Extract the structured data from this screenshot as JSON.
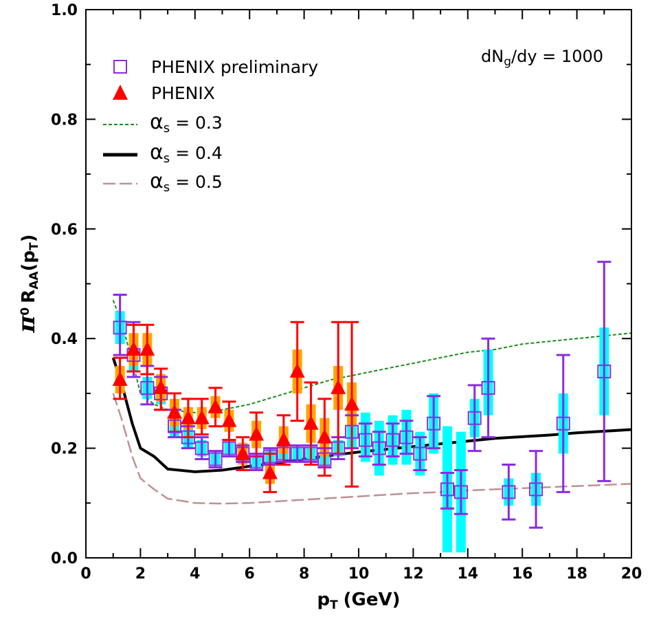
{
  "chart_data": {
    "type": "scatter",
    "x_label": "p",
    "x_label_sub": "T",
    "x_label_unit": "(GeV)",
    "y_label_symbol": "π",
    "y_label_sup": "0",
    "y_label_main": "R",
    "y_label_sub": "AA",
    "y_label_arg_open": "(p",
    "y_label_arg_sub": "T",
    "y_label_arg_close": ")",
    "xlim": [
      0,
      20
    ],
    "ylim": [
      0.0,
      1.0
    ],
    "x_ticks": [
      "0",
      "2",
      "4",
      "6",
      "8",
      "10",
      "12",
      "14",
      "16",
      "18",
      "20"
    ],
    "y_ticks": [
      "0.0",
      "0.2",
      "0.4",
      "0.6",
      "0.8",
      "1.0"
    ],
    "annotation": {
      "main": "dN",
      "sub": "g",
      "rest": "/dy = 1000"
    },
    "legend": [
      {
        "label": "PHENIX preliminary",
        "marker": "open-square",
        "color": "#8a2be2"
      },
      {
        "label": "PHENIX",
        "marker": "filled-triangle",
        "color": "#ff0000"
      },
      {
        "label_symbol": "α",
        "label_sub": "s",
        "label_rest": " = 0.3",
        "line": "short-dash",
        "color": "#1a8a1a"
      },
      {
        "label_symbol": "α",
        "label_sub": "s",
        "label_rest": " = 0.4",
        "line": "solid",
        "color": "#000000"
      },
      {
        "label_symbol": "α",
        "label_sub": "s",
        "label_rest": " = 0.5",
        "line": "long-dash",
        "color": "#c09090"
      }
    ],
    "colors": {
      "preliminary_marker": "#8a2be2",
      "preliminary_syst": "#00ffff",
      "phenix_marker": "#ff0000",
      "phenix_syst": "#ffa500",
      "curve_03": "#1a8a1a",
      "curve_04": "#000000",
      "curve_05": "#c09090"
    },
    "series": [
      {
        "name": "PHENIX preliminary",
        "points": [
          {
            "x": 1.25,
            "y": 0.42,
            "lo": 0.37,
            "hi": 0.48,
            "slo": 0.39,
            "shi": 0.45
          },
          {
            "x": 1.75,
            "y": 0.37,
            "lo": 0.33,
            "hi": 0.43,
            "slo": 0.34,
            "shi": 0.4
          },
          {
            "x": 2.25,
            "y": 0.31,
            "lo": 0.28,
            "hi": 0.35,
            "slo": 0.29,
            "shi": 0.33
          },
          {
            "x": 2.75,
            "y": 0.3,
            "lo": 0.27,
            "hi": 0.33,
            "slo": 0.28,
            "shi": 0.32
          },
          {
            "x": 3.25,
            "y": 0.24,
            "lo": 0.22,
            "hi": 0.27,
            "slo": 0.22,
            "shi": 0.26
          },
          {
            "x": 3.75,
            "y": 0.22,
            "lo": 0.2,
            "hi": 0.24,
            "slo": 0.2,
            "shi": 0.24
          },
          {
            "x": 4.25,
            "y": 0.2,
            "lo": 0.18,
            "hi": 0.22,
            "slo": 0.185,
            "shi": 0.215
          },
          {
            "x": 4.75,
            "y": 0.18,
            "lo": 0.165,
            "hi": 0.195,
            "slo": 0.17,
            "shi": 0.19
          },
          {
            "x": 5.25,
            "y": 0.2,
            "lo": 0.185,
            "hi": 0.215,
            "slo": 0.19,
            "shi": 0.21
          },
          {
            "x": 5.75,
            "y": 0.19,
            "lo": 0.175,
            "hi": 0.205,
            "slo": 0.18,
            "shi": 0.2
          },
          {
            "x": 6.25,
            "y": 0.175,
            "lo": 0.16,
            "hi": 0.19,
            "slo": 0.165,
            "shi": 0.185
          },
          {
            "x": 6.75,
            "y": 0.185,
            "lo": 0.17,
            "hi": 0.2,
            "slo": 0.175,
            "shi": 0.195
          },
          {
            "x": 7.25,
            "y": 0.19,
            "lo": 0.175,
            "hi": 0.205,
            "slo": 0.18,
            "shi": 0.2
          },
          {
            "x": 7.75,
            "y": 0.19,
            "lo": 0.175,
            "hi": 0.205,
            "slo": 0.18,
            "shi": 0.2
          },
          {
            "x": 8.25,
            "y": 0.19,
            "lo": 0.175,
            "hi": 0.205,
            "slo": 0.18,
            "shi": 0.2
          },
          {
            "x": 8.75,
            "y": 0.18,
            "lo": 0.165,
            "hi": 0.2,
            "slo": 0.17,
            "shi": 0.19
          },
          {
            "x": 9.25,
            "y": 0.2,
            "lo": 0.18,
            "hi": 0.22,
            "slo": 0.185,
            "shi": 0.215
          },
          {
            "x": 9.75,
            "y": 0.23,
            "lo": 0.2,
            "hi": 0.26,
            "slo": 0.2,
            "shi": 0.26
          },
          {
            "x": 10.25,
            "y": 0.215,
            "lo": 0.185,
            "hi": 0.245,
            "slo": 0.175,
            "shi": 0.265
          },
          {
            "x": 10.75,
            "y": 0.2,
            "lo": 0.17,
            "hi": 0.23,
            "slo": 0.15,
            "shi": 0.25
          },
          {
            "x": 11.25,
            "y": 0.215,
            "lo": 0.185,
            "hi": 0.245,
            "slo": 0.17,
            "shi": 0.26
          },
          {
            "x": 11.75,
            "y": 0.22,
            "lo": 0.19,
            "hi": 0.25,
            "slo": 0.17,
            "shi": 0.27
          },
          {
            "x": 12.25,
            "y": 0.19,
            "lo": 0.16,
            "hi": 0.22,
            "slo": 0.15,
            "shi": 0.23
          },
          {
            "x": 12.75,
            "y": 0.245,
            "lo": 0.2,
            "hi": 0.295,
            "slo": 0.19,
            "shi": 0.3
          },
          {
            "x": 13.25,
            "y": 0.125,
            "lo": 0.09,
            "hi": 0.155,
            "slo": 0.01,
            "shi": 0.24
          },
          {
            "x": 13.75,
            "y": 0.12,
            "lo": 0.08,
            "hi": 0.16,
            "slo": 0.01,
            "shi": 0.23
          },
          {
            "x": 14.25,
            "y": 0.255,
            "lo": 0.195,
            "hi": 0.315,
            "slo": 0.22,
            "shi": 0.29
          },
          {
            "x": 14.75,
            "y": 0.31,
            "lo": 0.22,
            "hi": 0.4,
            "slo": 0.26,
            "shi": 0.38
          },
          {
            "x": 15.5,
            "y": 0.12,
            "lo": 0.07,
            "hi": 0.17,
            "slo": 0.095,
            "shi": 0.145
          },
          {
            "x": 16.5,
            "y": 0.125,
            "lo": 0.055,
            "hi": 0.195,
            "slo": 0.095,
            "shi": 0.155
          },
          {
            "x": 17.5,
            "y": 0.245,
            "lo": 0.12,
            "hi": 0.37,
            "slo": 0.19,
            "shi": 0.3
          },
          {
            "x": 19.0,
            "y": 0.34,
            "lo": 0.14,
            "hi": 0.54,
            "slo": 0.26,
            "shi": 0.42
          }
        ]
      },
      {
        "name": "PHENIX",
        "points": [
          {
            "x": 1.25,
            "y": 0.325,
            "lo": 0.29,
            "hi": 0.365,
            "slo": 0.3,
            "shi": 0.35
          },
          {
            "x": 1.75,
            "y": 0.38,
            "lo": 0.34,
            "hi": 0.425,
            "slo": 0.35,
            "shi": 0.41
          },
          {
            "x": 2.25,
            "y": 0.38,
            "lo": 0.335,
            "hi": 0.425,
            "slo": 0.35,
            "shi": 0.41
          },
          {
            "x": 2.75,
            "y": 0.31,
            "lo": 0.27,
            "hi": 0.345,
            "slo": 0.285,
            "shi": 0.335
          },
          {
            "x": 3.25,
            "y": 0.265,
            "lo": 0.23,
            "hi": 0.3,
            "slo": 0.24,
            "shi": 0.29
          },
          {
            "x": 3.75,
            "y": 0.255,
            "lo": 0.22,
            "hi": 0.29,
            "slo": 0.235,
            "shi": 0.275
          },
          {
            "x": 4.25,
            "y": 0.255,
            "lo": 0.225,
            "hi": 0.29,
            "slo": 0.235,
            "shi": 0.275
          },
          {
            "x": 4.75,
            "y": 0.275,
            "lo": 0.24,
            "hi": 0.31,
            "slo": 0.255,
            "shi": 0.295
          },
          {
            "x": 5.25,
            "y": 0.25,
            "lo": 0.215,
            "hi": 0.285,
            "slo": 0.23,
            "shi": 0.27
          },
          {
            "x": 5.75,
            "y": 0.19,
            "lo": 0.16,
            "hi": 0.22,
            "slo": 0.17,
            "shi": 0.21
          },
          {
            "x": 6.25,
            "y": 0.225,
            "lo": 0.185,
            "hi": 0.265,
            "slo": 0.2,
            "shi": 0.25
          },
          {
            "x": 6.75,
            "y": 0.155,
            "lo": 0.12,
            "hi": 0.19,
            "slo": 0.135,
            "shi": 0.175
          },
          {
            "x": 7.25,
            "y": 0.215,
            "lo": 0.17,
            "hi": 0.26,
            "slo": 0.19,
            "shi": 0.24
          },
          {
            "x": 7.75,
            "y": 0.34,
            "lo": 0.25,
            "hi": 0.43,
            "slo": 0.3,
            "shi": 0.38
          },
          {
            "x": 8.25,
            "y": 0.245,
            "lo": 0.17,
            "hi": 0.32,
            "slo": 0.21,
            "shi": 0.28
          },
          {
            "x": 8.75,
            "y": 0.22,
            "lo": 0.15,
            "hi": 0.29,
            "slo": 0.185,
            "shi": 0.255
          },
          {
            "x": 9.25,
            "y": 0.31,
            "lo": 0.19,
            "hi": 0.43,
            "slo": 0.27,
            "shi": 0.35
          },
          {
            "x": 9.75,
            "y": 0.28,
            "lo": 0.13,
            "hi": 0.43,
            "slo": 0.24,
            "shi": 0.32
          }
        ]
      }
    ],
    "curves": [
      {
        "name": "alpha_s = 0.3",
        "x": [
          1.0,
          1.3,
          1.7,
          2.0,
          2.5,
          3.0,
          4.0,
          5.0,
          6.0,
          7.0,
          8.0,
          9.0,
          10.0,
          11.0,
          12.0,
          13.0,
          14.0,
          15.0,
          16.0,
          17.0,
          18.0,
          19.0,
          20.0
        ],
        "y": [
          0.47,
          0.43,
          0.36,
          0.3,
          0.28,
          0.27,
          0.265,
          0.27,
          0.28,
          0.295,
          0.31,
          0.325,
          0.335,
          0.345,
          0.355,
          0.365,
          0.375,
          0.38,
          0.39,
          0.395,
          0.4,
          0.405,
          0.41
        ]
      },
      {
        "name": "alpha_s = 0.4",
        "x": [
          1.0,
          1.3,
          1.7,
          2.0,
          2.5,
          3.0,
          4.0,
          5.0,
          6.0,
          7.0,
          8.0,
          9.0,
          10.0,
          11.0,
          12.0,
          13.0,
          14.0,
          15.0,
          16.0,
          17.0,
          18.0,
          19.0,
          20.0
        ],
        "y": [
          0.365,
          0.32,
          0.245,
          0.2,
          0.185,
          0.162,
          0.157,
          0.16,
          0.167,
          0.173,
          0.18,
          0.187,
          0.193,
          0.198,
          0.203,
          0.208,
          0.213,
          0.218,
          0.221,
          0.224,
          0.228,
          0.231,
          0.234
        ]
      },
      {
        "name": "alpha_s = 0.5",
        "x": [
          1.0,
          1.3,
          1.7,
          2.0,
          2.5,
          3.0,
          4.0,
          5.0,
          6.0,
          7.0,
          8.0,
          9.0,
          10.0,
          11.0,
          12.0,
          13.0,
          14.0,
          15.0,
          16.0,
          17.0,
          18.0,
          19.0,
          20.0
        ],
        "y": [
          0.3,
          0.255,
          0.185,
          0.145,
          0.125,
          0.108,
          0.1,
          0.099,
          0.1,
          0.103,
          0.106,
          0.109,
          0.112,
          0.115,
          0.118,
          0.12,
          0.123,
          0.125,
          0.127,
          0.129,
          0.131,
          0.133,
          0.135
        ]
      }
    ]
  }
}
